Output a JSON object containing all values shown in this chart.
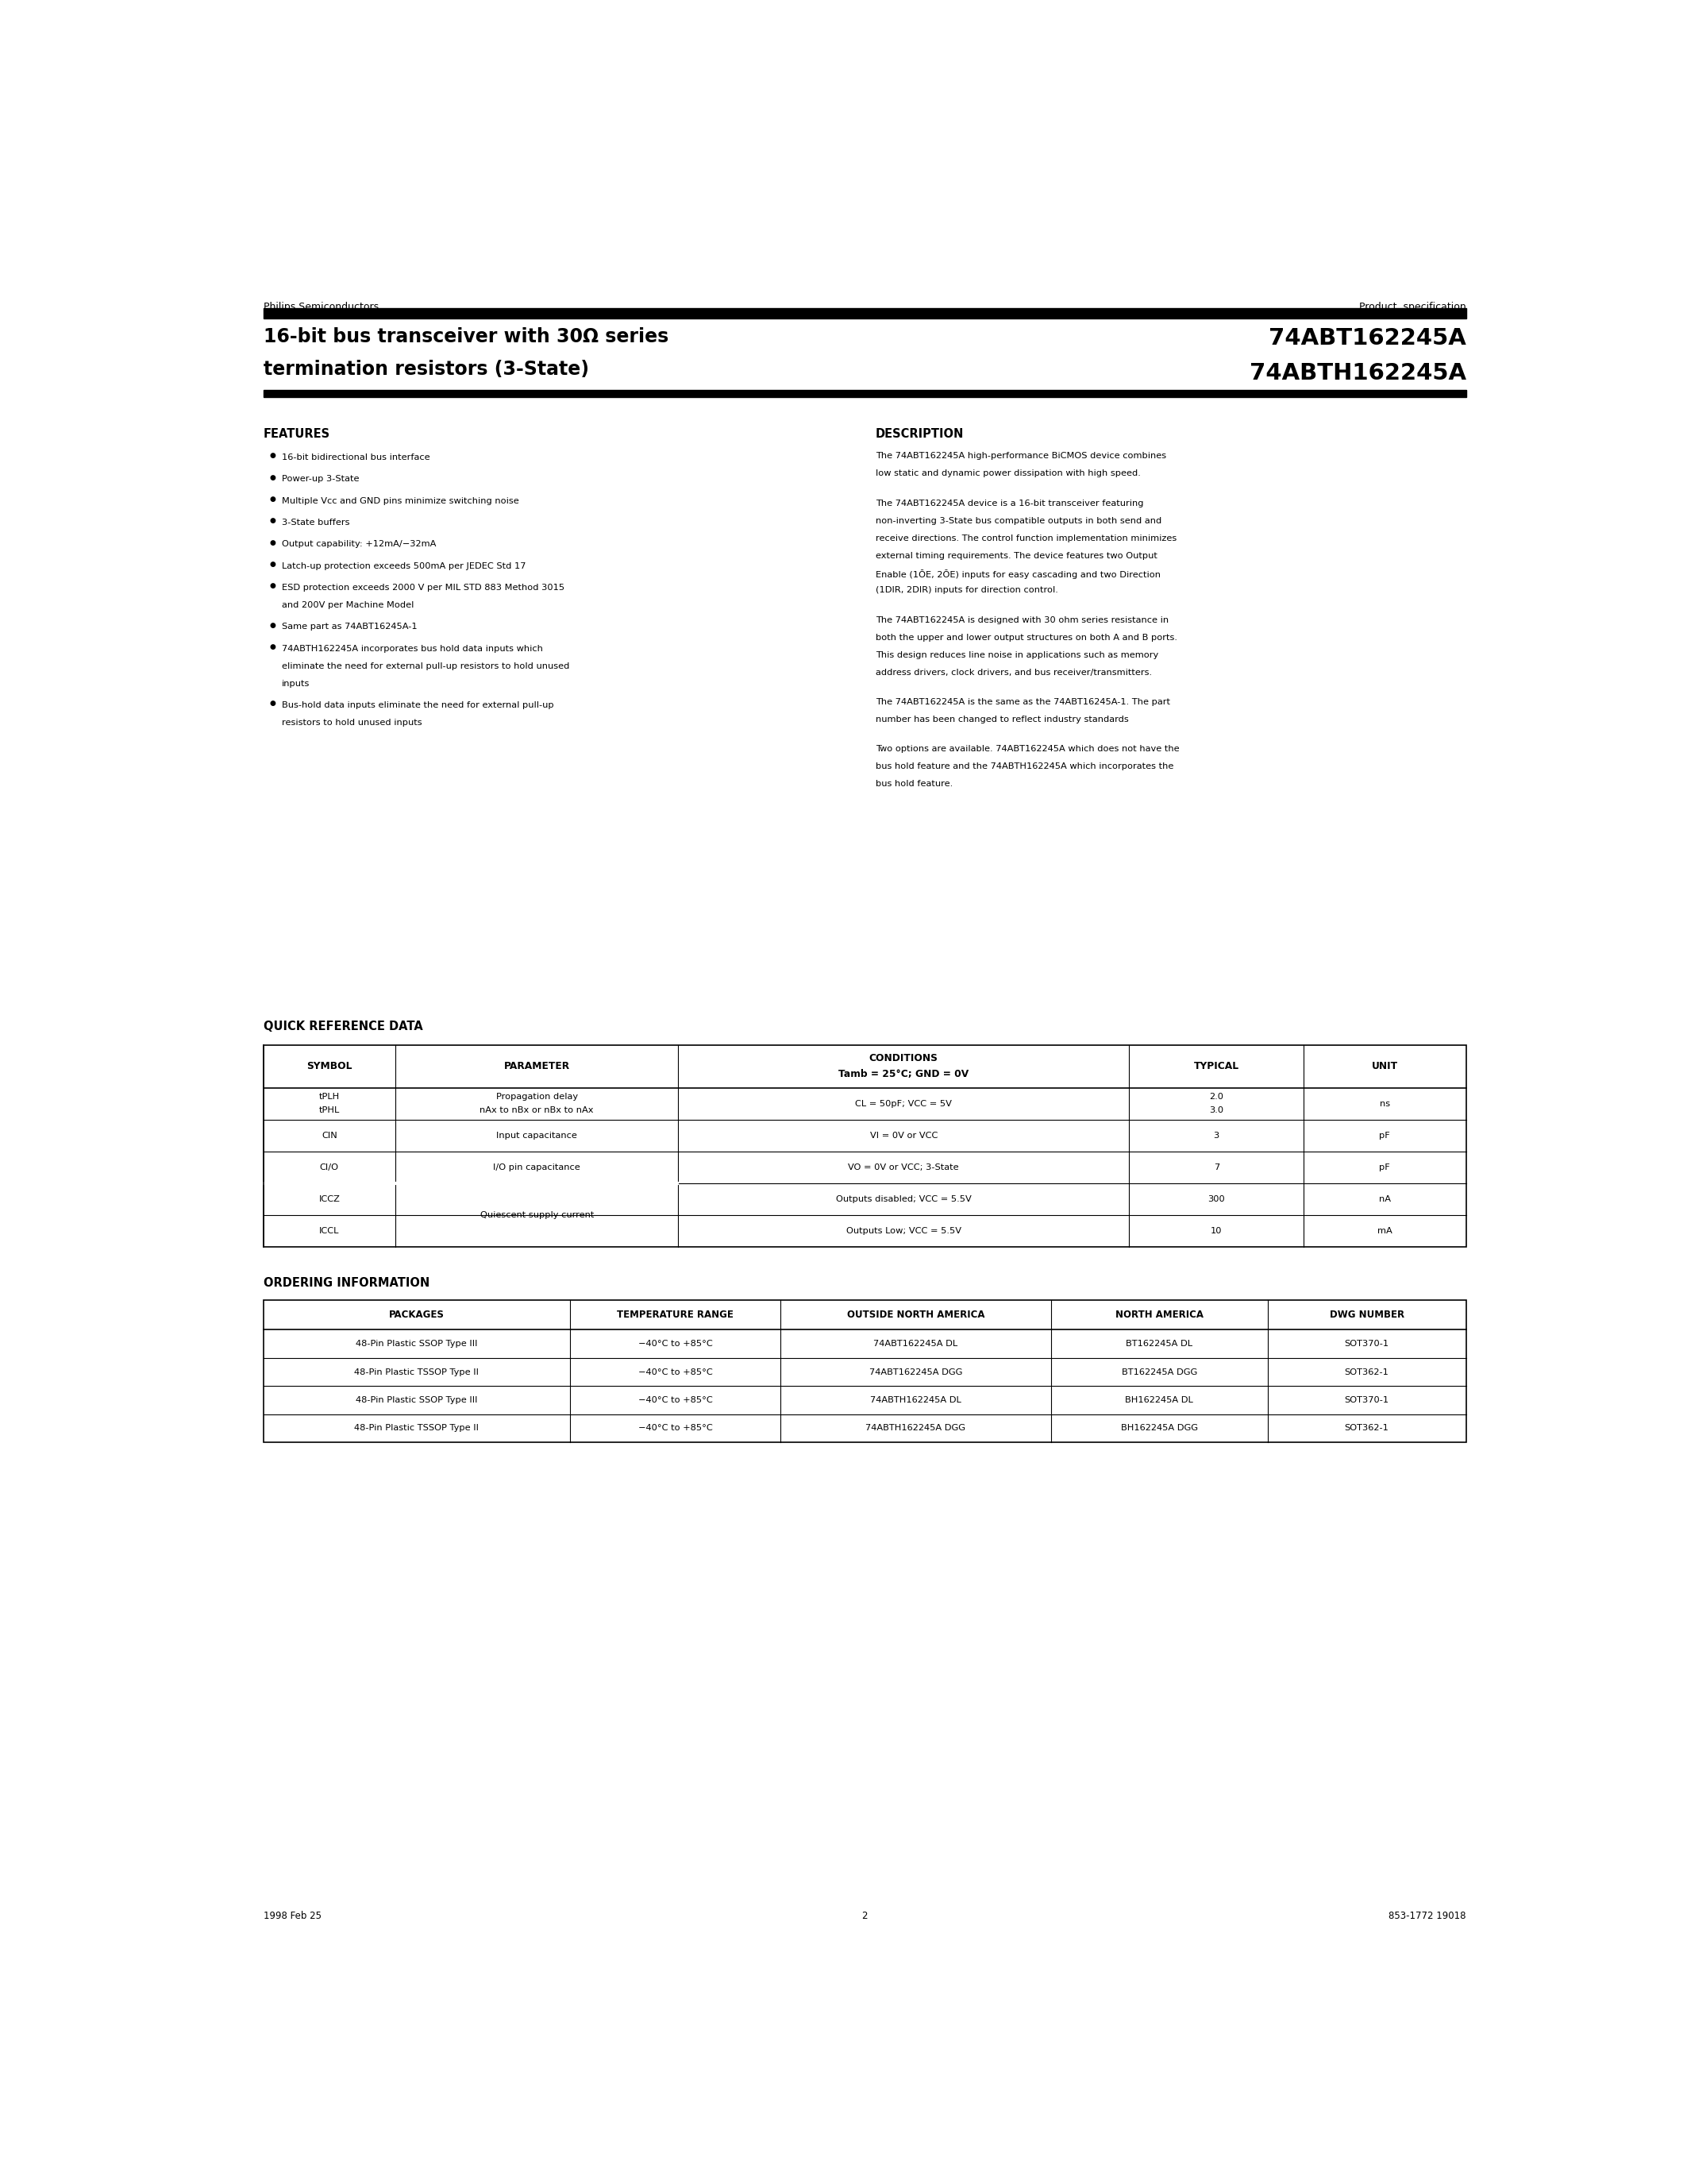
{
  "page_bg": "#ffffff",
  "header_left": "Philips Semiconductors",
  "header_right": "Product  specification",
  "title_line1": "16-bit bus transceiver with 30Ω series",
  "title_line2": "termination resistors (3-State)",
  "title_right1": "74ABT162245A",
  "title_right2": "74ABTH162245A",
  "features_title": "FEATURES",
  "features": [
    "16-bit bidirectional bus interface",
    "Power-up 3-State",
    "Multiple Vᴄᴄ and GND pins minimize switching noise",
    "3-State buffers",
    "Output capability: +12mA/−32mA",
    "Latch-up protection exceeds 500mA per JEDEC Std 17",
    "ESD protection exceeds 2000 V per MIL STD 883 Method 3015\nand 200V per Machine Model",
    "Same part as 74ABT16245A-1",
    "74ABTH162245A incorporates bus hold data inputs which\neliminate the need for external pull-up resistors to hold unused\ninputs",
    "Bus-hold data inputs eliminate the need for external pull-up\nresistors to hold unused inputs"
  ],
  "description_title": "DESCRIPTION",
  "description_paragraphs": [
    "The 74ABT162245A high-performance BiCMOS device combines\nlow static and dynamic power dissipation with high speed.",
    "The 74ABT162245A device is a 16-bit transceiver featuring\nnon-inverting 3-State bus compatible outputs in both send and\nreceive directions. The control function implementation minimizes\nexternal timing requirements. The device features two Output\nEnable (1ŎE, 2ŎE) inputs for easy cascading and two Direction\n(1DIR, 2DIR) inputs for direction control.",
    "The 74ABT162245A is designed with 30 ohm series resistance in\nboth the upper and lower output structures on both A and B ports.\nThis design reduces line noise in applications such as memory\naddress drivers, clock drivers, and bus receiver/transmitters.",
    "The 74ABT162245A is the same as the 74ABT16245A-1. The part\nnumber has been changed to reflect industry standards",
    "Two options are available. 74ABT162245A which does not have the\nbus hold feature and the 74ABTH162245A which incorporates the\nbus hold feature."
  ],
  "qrd_title": "QUICK REFERENCE DATA",
  "qrd_headers": [
    "SYMBOL",
    "PARAMETER",
    "CONDITIONS\nTamb = 25°C; GND = 0V",
    "TYPICAL",
    "UNIT"
  ],
  "qrd_rows": [
    [
      "tPLH\ntPHL",
      "Propagation delay\nnAx to nBx or nBx to nAx",
      "CL = 50pF; VCC = 5V",
      "2.0\n3.0",
      "ns"
    ],
    [
      "CIN",
      "Input capacitance",
      "VI = 0V or VCC",
      "3",
      "pF"
    ],
    [
      "CI/O",
      "I/O pin capacitance",
      "VO = 0V or VCC; 3-State",
      "7",
      "pF"
    ],
    [
      "ICCZ",
      "Quiescent supply current",
      "Outputs disabled; VCC = 5.5V",
      "300",
      "nA"
    ],
    [
      "ICCL",
      "",
      "Outputs Low; VCC = 5.5V",
      "10",
      "mA"
    ]
  ],
  "ordering_title": "ORDERING INFORMATION",
  "ordering_headers": [
    "PACKAGES",
    "TEMPERATURE RANGE",
    "OUTSIDE NORTH AMERICA",
    "NORTH AMERICA",
    "DWG NUMBER"
  ],
  "ordering_rows": [
    [
      "48-Pin Plastic SSOP Type III",
      "−40°C to +85°C",
      "74ABT162245A DL",
      "BT162245A DL",
      "SOT370-1"
    ],
    [
      "48-Pin Plastic TSSOP Type II",
      "−40°C to +85°C",
      "74ABT162245A DGG",
      "BT162245A DGG",
      "SOT362-1"
    ],
    [
      "48-Pin Plastic SSOP Type III",
      "−40°C to +85°C",
      "74ABTH162245A DL",
      "BH162245A DL",
      "SOT370-1"
    ],
    [
      "48-Pin Plastic TSSOP Type II",
      "−40°C to +85°C",
      "74ABTH162245A DGG",
      "BH162245A DGG",
      "SOT362-1"
    ]
  ],
  "footer_left": "1998 Feb 25",
  "footer_center": "2",
  "footer_right": "853-1772 19018"
}
